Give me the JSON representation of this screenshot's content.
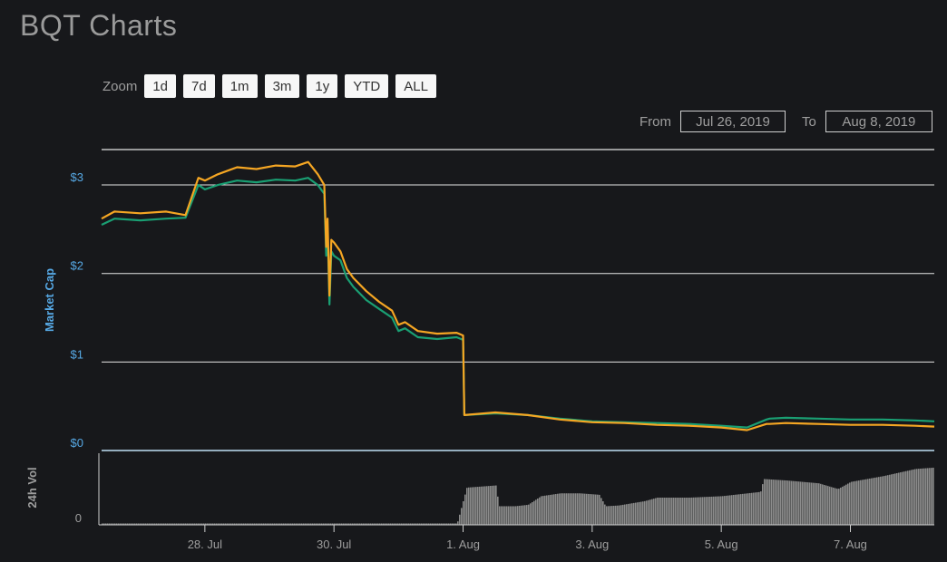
{
  "title": "BQT Charts",
  "zoom": {
    "label": "Zoom",
    "buttons": [
      "1d",
      "7d",
      "1m",
      "3m",
      "1y",
      "YTD",
      "ALL"
    ]
  },
  "range": {
    "from_label": "From",
    "from_value": "Jul 26, 2019",
    "to_label": "To",
    "to_value": "Aug 8, 2019"
  },
  "colors": {
    "background": "#17181b",
    "line_usd": "#f5a623",
    "line_btc": "#1a9f73",
    "axis_text": "#56a8e4",
    "volume": "#8c8c8c",
    "grid": "#e6e6e6"
  },
  "chart_data": [
    {
      "type": "line",
      "ylabel": "Market Cap",
      "ylim": [
        0,
        3.4
      ],
      "ytick_labels": [
        "$0",
        "$1",
        "$2",
        "$3"
      ],
      "ytick_values": [
        0,
        1,
        2,
        3
      ],
      "grid": true,
      "xlim": [
        26.4,
        39.3
      ],
      "x_tick_labels": [
        "28. Jul",
        "30. Jul",
        "1. Aug",
        "3. Aug",
        "5. Aug",
        "7. Aug"
      ],
      "x_tick_values": [
        28,
        30,
        32,
        34,
        36,
        38
      ],
      "series": [
        {
          "color": "#1a9f73",
          "x": [
            26.4,
            26.6,
            27.0,
            27.4,
            27.7,
            27.9,
            28.0,
            28.2,
            28.5,
            28.8,
            29.1,
            29.4,
            29.6,
            29.75,
            29.85,
            29.88,
            29.9,
            29.93,
            29.96,
            30.0,
            30.1,
            30.2,
            30.3,
            30.5,
            30.7,
            30.9,
            31.0,
            31.1,
            31.3,
            31.6,
            31.9,
            32.0,
            32.02,
            32.5,
            33.0,
            33.5,
            34.0,
            34.5,
            35.0,
            35.5,
            36.0,
            36.4,
            36.7,
            36.75,
            37.0,
            37.5,
            38.0,
            38.5,
            39.0,
            39.3
          ],
          "y": [
            2.55,
            2.62,
            2.6,
            2.62,
            2.63,
            3.0,
            2.95,
            3.0,
            3.05,
            3.03,
            3.06,
            3.05,
            3.08,
            3.0,
            2.9,
            2.2,
            2.5,
            1.65,
            2.25,
            2.2,
            2.15,
            1.95,
            1.85,
            1.7,
            1.6,
            1.5,
            1.35,
            1.38,
            1.28,
            1.26,
            1.28,
            1.25,
            0.4,
            0.42,
            0.4,
            0.36,
            0.33,
            0.32,
            0.31,
            0.3,
            0.28,
            0.26,
            0.35,
            0.36,
            0.37,
            0.36,
            0.35,
            0.35,
            0.34,
            0.33
          ]
        },
        {
          "color": "#f5a623",
          "x": [
            26.4,
            26.6,
            27.0,
            27.4,
            27.7,
            27.9,
            28.0,
            28.2,
            28.5,
            28.8,
            29.1,
            29.4,
            29.6,
            29.75,
            29.85,
            29.88,
            29.9,
            29.93,
            29.96,
            30.0,
            30.1,
            30.2,
            30.3,
            30.5,
            30.7,
            30.9,
            31.0,
            31.1,
            31.3,
            31.6,
            31.9,
            32.0,
            32.02,
            32.5,
            33.0,
            33.5,
            34.0,
            34.5,
            35.0,
            35.5,
            36.0,
            36.4,
            36.7,
            36.75,
            37.0,
            37.5,
            38.0,
            38.5,
            39.0,
            39.3
          ],
          "y": [
            2.62,
            2.7,
            2.68,
            2.7,
            2.66,
            3.08,
            3.05,
            3.12,
            3.2,
            3.18,
            3.22,
            3.21,
            3.26,
            3.12,
            3.0,
            2.3,
            2.62,
            1.75,
            2.38,
            2.35,
            2.25,
            2.05,
            1.95,
            1.8,
            1.68,
            1.58,
            1.42,
            1.45,
            1.35,
            1.32,
            1.33,
            1.3,
            0.4,
            0.43,
            0.4,
            0.35,
            0.32,
            0.31,
            0.29,
            0.28,
            0.26,
            0.23,
            0.3,
            0.3,
            0.31,
            0.3,
            0.29,
            0.29,
            0.28,
            0.27
          ]
        }
      ]
    },
    {
      "type": "bar",
      "ylabel": "24h Vol",
      "ytick_labels": [
        "0"
      ],
      "ylim": [
        0,
        1
      ],
      "x": [
        26.4,
        30.5,
        31.9,
        32.05,
        32.5,
        32.55,
        32.8,
        33.0,
        33.2,
        33.5,
        33.8,
        34.1,
        34.2,
        34.4,
        34.8,
        35.0,
        35.5,
        36.0,
        36.6,
        36.65,
        37.0,
        37.5,
        37.8,
        38.0,
        38.5,
        39.0,
        39.3
      ],
      "values": [
        0.02,
        0.02,
        0.02,
        0.52,
        0.55,
        0.26,
        0.26,
        0.28,
        0.4,
        0.44,
        0.44,
        0.42,
        0.26,
        0.27,
        0.33,
        0.38,
        0.38,
        0.4,
        0.46,
        0.64,
        0.62,
        0.58,
        0.5,
        0.6,
        0.68,
        0.78,
        0.8
      ]
    }
  ]
}
